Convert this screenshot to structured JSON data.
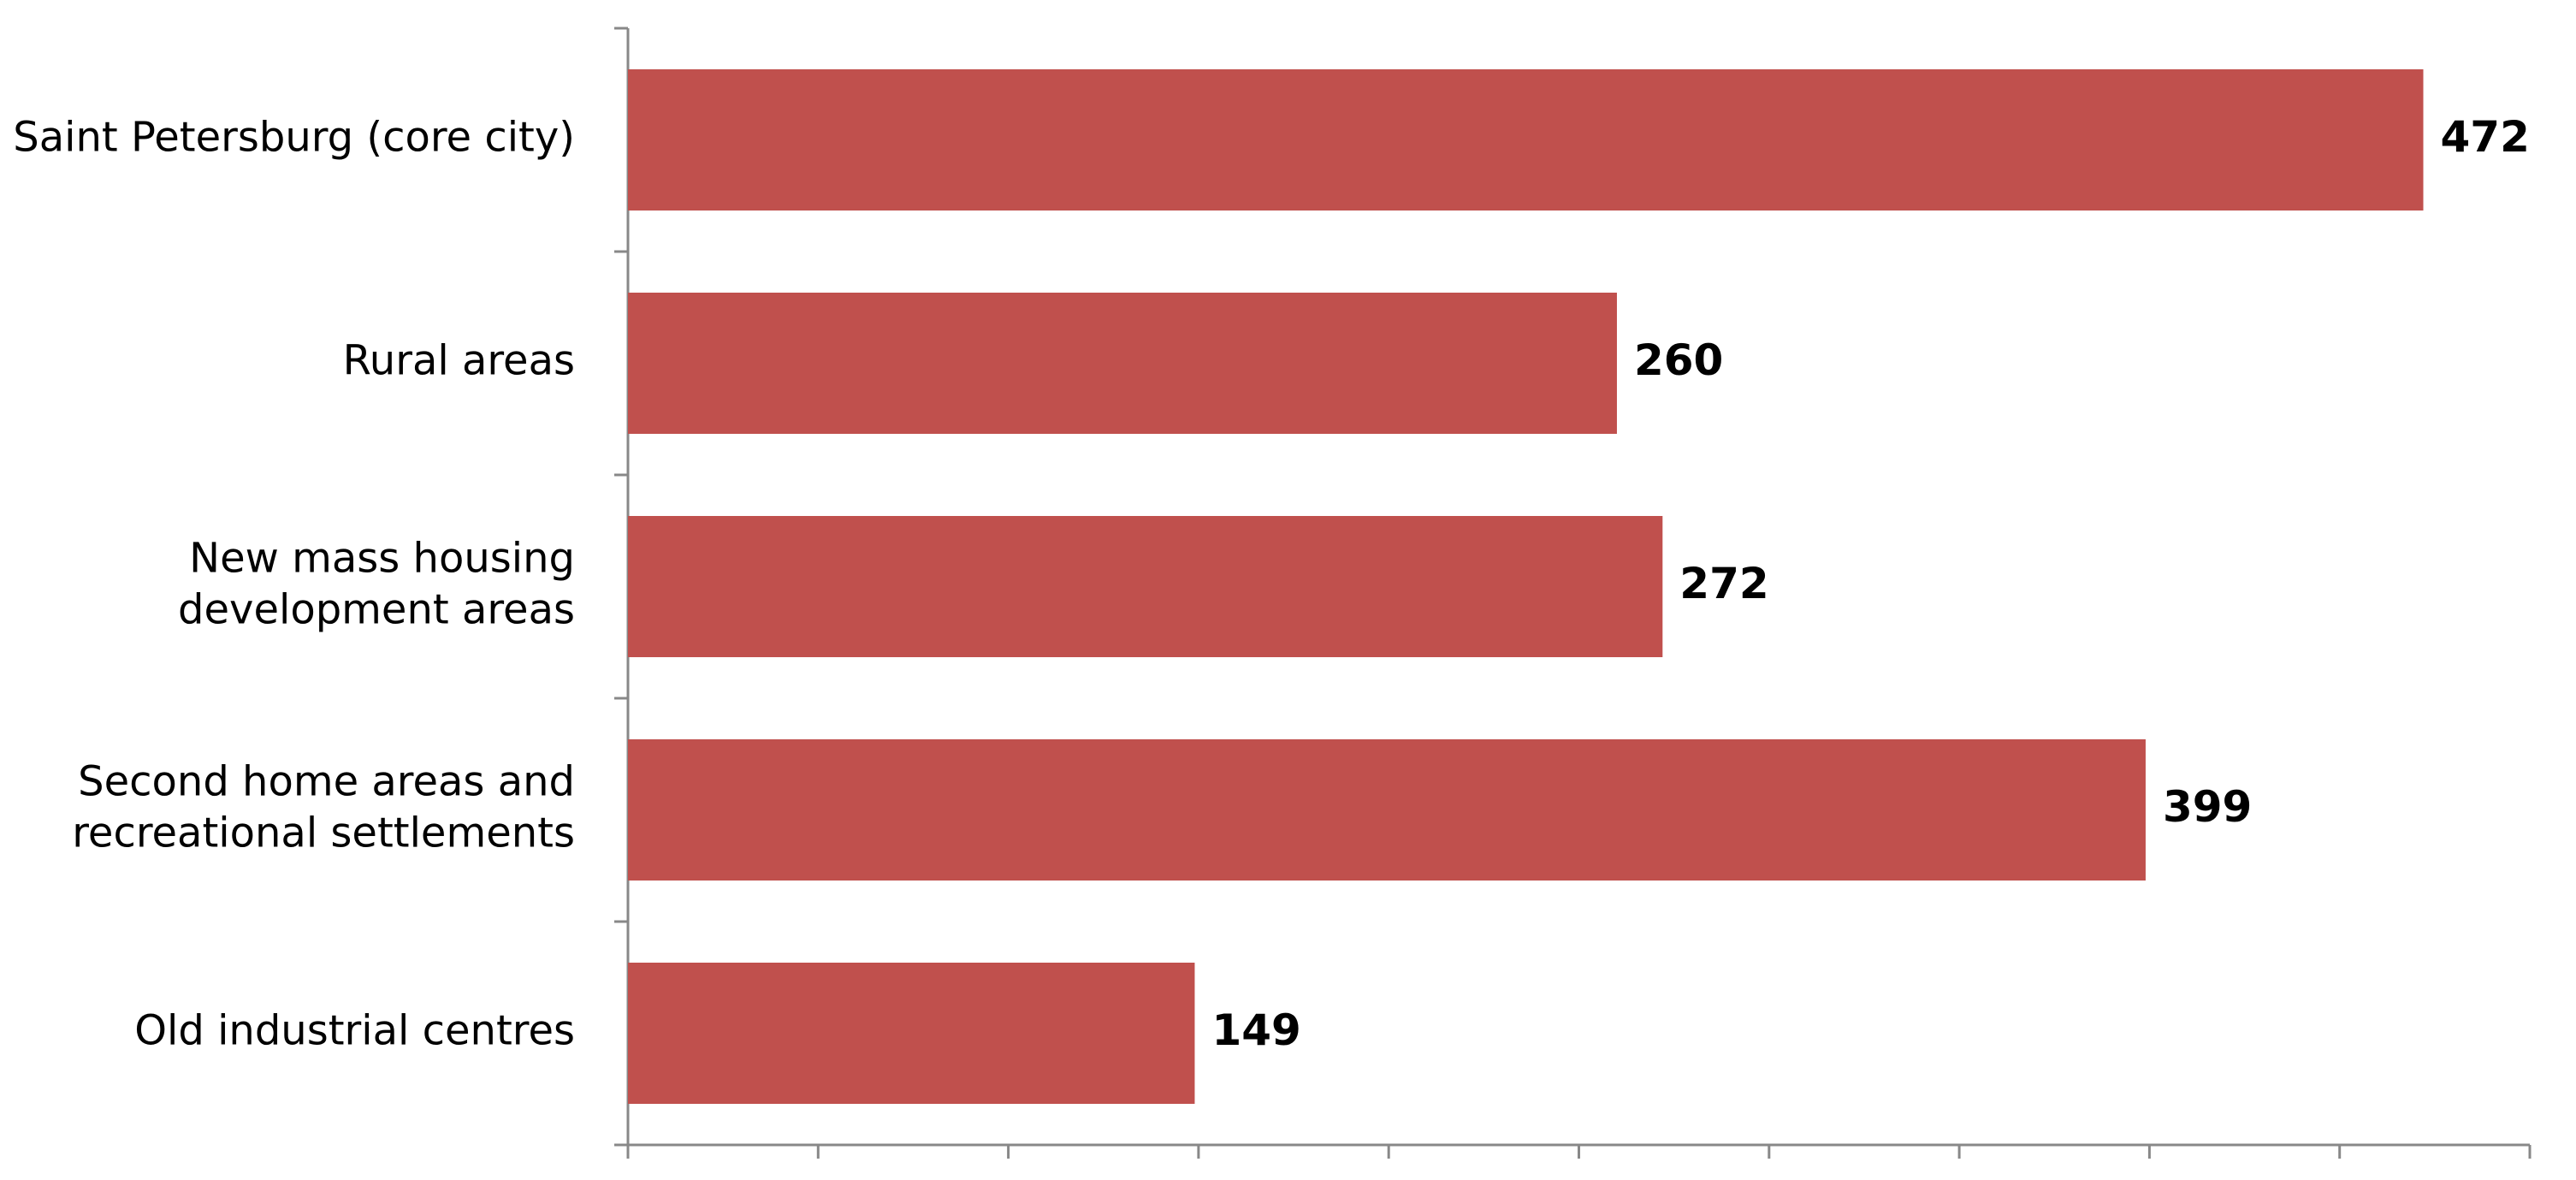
{
  "chart_data": {
    "type": "hbar",
    "categories": [
      "Saint Petersburg (core city)",
      "Rural areas",
      "New mass housing\ndevelopment areas",
      "Second home areas and\nrecreational settlements",
      "Old industrial centres"
    ],
    "values": [
      472,
      260,
      272,
      399,
      149
    ],
    "color": "#c0504d",
    "xlim": [
      0,
      500
    ],
    "xticks": [
      0,
      50,
      100,
      150,
      200,
      250,
      300,
      350,
      400,
      450,
      500
    ]
  }
}
